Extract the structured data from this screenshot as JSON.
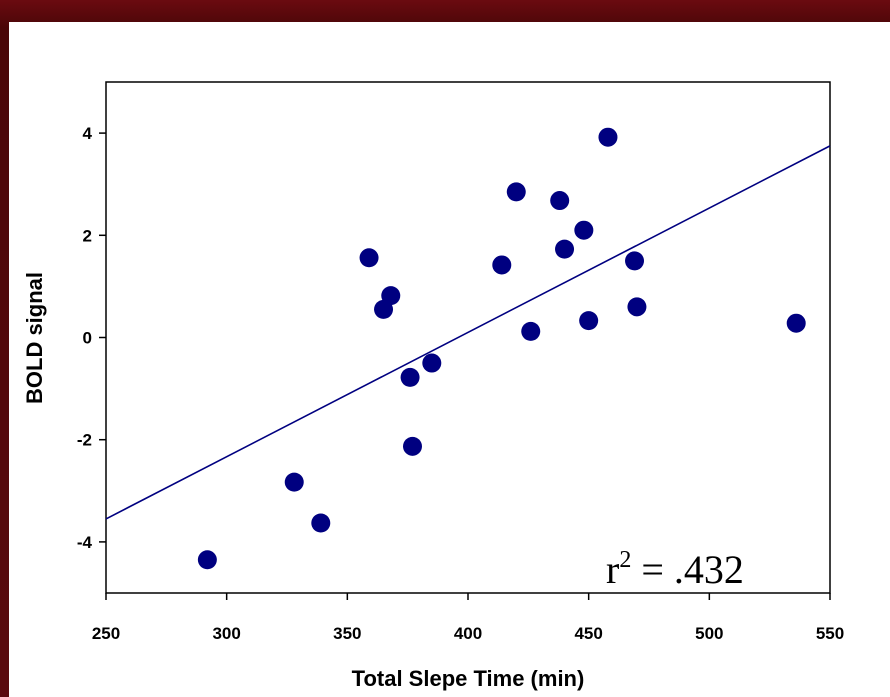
{
  "chart_data": {
    "type": "scatter",
    "xlabel": "Total Slepe Time (min)",
    "ylabel": "BOLD signal",
    "xlim": [
      250,
      550
    ],
    "ylim": [
      -5,
      5
    ],
    "xticks": [
      250,
      300,
      350,
      400,
      450,
      500,
      550
    ],
    "yticks": [
      -4,
      -2,
      0,
      2,
      4
    ],
    "xtick_labels": [
      "250",
      "300",
      "350",
      "400",
      "450",
      "500",
      "550"
    ],
    "ytick_labels": [
      "-4",
      "-2",
      "0",
      "2",
      "4"
    ],
    "grid": false,
    "points": [
      {
        "x": 292,
        "y": -4.35
      },
      {
        "x": 328,
        "y": -2.83
      },
      {
        "x": 339,
        "y": -3.63
      },
      {
        "x": 359,
        "y": 1.56
      },
      {
        "x": 365,
        "y": 0.55
      },
      {
        "x": 368,
        "y": 0.82
      },
      {
        "x": 376,
        "y": -0.78
      },
      {
        "x": 377,
        "y": -2.13
      },
      {
        "x": 385,
        "y": -0.5
      },
      {
        "x": 414,
        "y": 1.42
      },
      {
        "x": 420,
        "y": 2.85
      },
      {
        "x": 426,
        "y": 0.12
      },
      {
        "x": 438,
        "y": 2.68
      },
      {
        "x": 440,
        "y": 1.73
      },
      {
        "x": 448,
        "y": 2.1
      },
      {
        "x": 450,
        "y": 0.33
      },
      {
        "x": 458,
        "y": 3.92
      },
      {
        "x": 469,
        "y": 1.5
      },
      {
        "x": 470,
        "y": 0.6
      },
      {
        "x": 536,
        "y": 0.28
      }
    ],
    "regression_line": {
      "x": [
        250,
        550
      ],
      "y": [
        -3.55,
        3.75
      ]
    },
    "marker_color": "#000080",
    "line_color": "#000080",
    "annotation": {
      "base": "r",
      "sup": "2",
      "rest": " = .432"
    }
  }
}
